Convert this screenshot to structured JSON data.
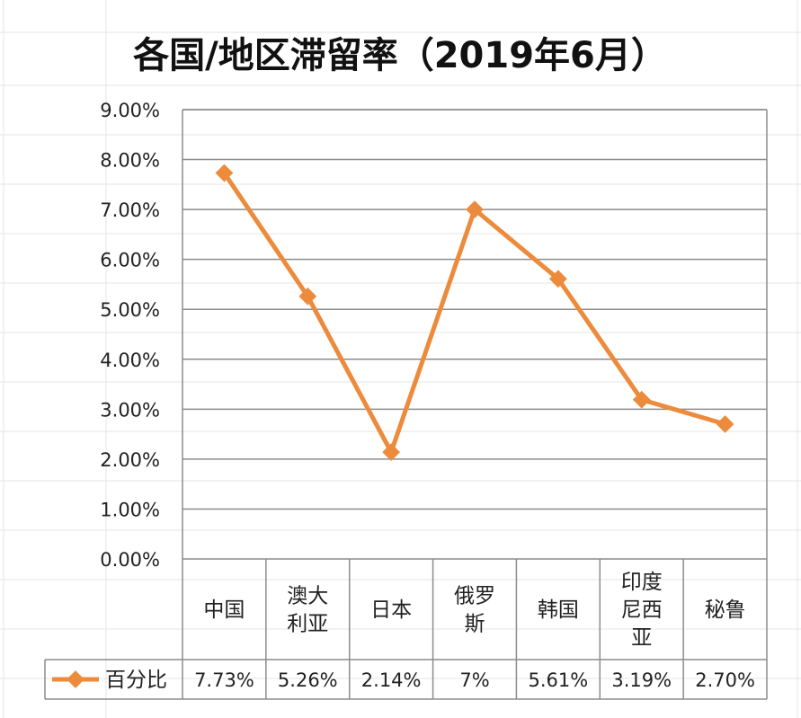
{
  "chart_data": {
    "type": "line",
    "title": "各国/地区滞留率（2019年6月）",
    "categories": [
      [
        "中国"
      ],
      [
        "澳大",
        "利亚"
      ],
      [
        "日本"
      ],
      [
        "俄罗",
        "斯"
      ],
      [
        "韩国"
      ],
      [
        "印度",
        "尼西",
        "亚"
      ],
      [
        "秘鲁"
      ]
    ],
    "series": [
      {
        "name": "百分比",
        "values": [
          7.73,
          5.26,
          2.14,
          7,
          5.61,
          3.19,
          2.7
        ],
        "labels": [
          "7.73%",
          "5.26%",
          "2.14%",
          "7%",
          "5.61%",
          "3.19%",
          "2.70%"
        ],
        "color": "#ED8B3C"
      }
    ],
    "y_ticks": [
      "0.00%",
      "1.00%",
      "2.00%",
      "3.00%",
      "4.00%",
      "5.00%",
      "6.00%",
      "7.00%",
      "8.00%",
      "9.00%"
    ],
    "ylim": [
      0,
      9
    ],
    "grid": true,
    "legend": "data-table-left"
  }
}
